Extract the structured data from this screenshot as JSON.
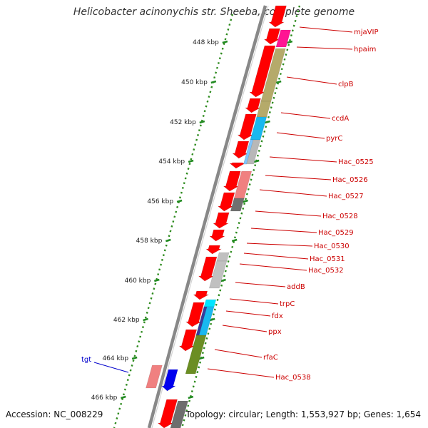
{
  "title": "Helicobacter acinonychis str. Sheeba, complete genome",
  "footer": {
    "accession": "Accession: NC_008229",
    "summary": "Topology: circular; Length: 1,553,927 bp; Genes: 1,654"
  },
  "colors": {
    "cds": "#ff0000",
    "gene_label": "#cc0000",
    "highlight_label": "#0000cc",
    "tick": "#228b22",
    "backbone": "#888888"
  },
  "ticks": [
    {
      "label": "448 kbp"
    },
    {
      "label": "450 kbp"
    },
    {
      "label": "452 kbp"
    },
    {
      "label": "454 kbp"
    },
    {
      "label": "456 kbp"
    },
    {
      "label": "458 kbp"
    },
    {
      "label": "460 kbp"
    },
    {
      "label": "462 kbp"
    },
    {
      "label": "464 kbp"
    },
    {
      "label": "466 kbp"
    }
  ],
  "genes": [
    {
      "label": "mjaVIP"
    },
    {
      "label": "hpaim"
    },
    {
      "label": "clpB"
    },
    {
      "label": "ccdA"
    },
    {
      "label": "pyrC"
    },
    {
      "label": "Hac_0525"
    },
    {
      "label": "Hac_0526"
    },
    {
      "label": "Hac_0527"
    },
    {
      "label": "Hac_0528"
    },
    {
      "label": "Hac_0529"
    },
    {
      "label": "Hac_0530"
    },
    {
      "label": "Hac_0531"
    },
    {
      "label": "Hac_0532"
    },
    {
      "label": "addB"
    },
    {
      "label": "trpC"
    },
    {
      "label": "fdx"
    },
    {
      "label": "ppx"
    },
    {
      "label": "rfaC"
    },
    {
      "label": "Hac_0538"
    }
  ],
  "highlight": {
    "label": "tgt"
  }
}
